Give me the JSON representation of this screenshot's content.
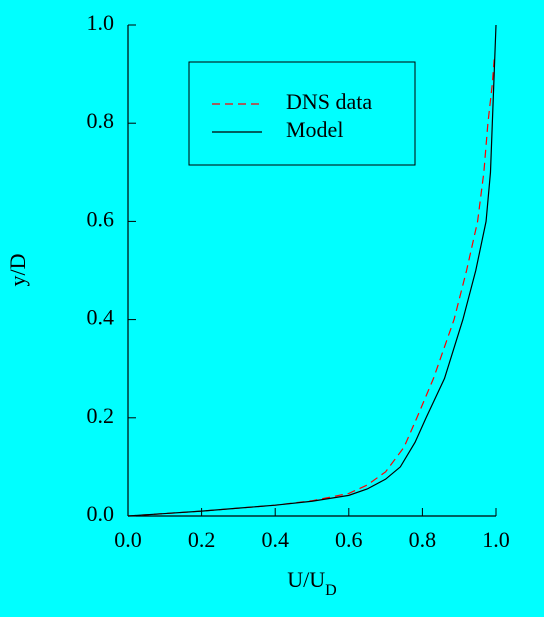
{
  "chart_data": {
    "type": "line",
    "xlabel": "U/U",
    "xlabel_sub": "D",
    "ylabel": "y/D",
    "xlim": [
      0,
      1
    ],
    "ylim": [
      0,
      1
    ],
    "xticks": [
      {
        "value": 0,
        "label": "0.0"
      },
      0.2,
      0.4,
      0.6,
      0.8,
      {
        "value": 1,
        "label": "1.0"
      }
    ],
    "yticks": [
      {
        "value": 0,
        "label": "0.0"
      },
      0.2,
      0.4,
      0.6,
      0.8,
      {
        "value": 1,
        "label": "1.0"
      }
    ],
    "legend": "upper center",
    "series": [
      {
        "name": "DNS data",
        "color": "#ff0000",
        "dash": true,
        "x": [
          0,
          0.1,
          0.2,
          0.3,
          0.4,
          0.5,
          0.6,
          0.65,
          0.7,
          0.75,
          0.785,
          0.83,
          0.886,
          0.92,
          0.95,
          0.967,
          0.978,
          0.99,
          0.995
        ],
        "values": [
          0,
          0.005,
          0.01,
          0.016,
          0.022,
          0.031,
          0.046,
          0.063,
          0.09,
          0.14,
          0.2,
          0.28,
          0.4,
          0.5,
          0.6,
          0.7,
          0.8,
          0.88,
          0.93
        ]
      },
      {
        "name": "Model",
        "color": "#000000",
        "dash": false,
        "x": [
          0,
          0.1,
          0.2,
          0.3,
          0.4,
          0.5,
          0.6,
          0.65,
          0.7,
          0.74,
          0.78,
          0.81,
          0.86,
          0.91,
          0.945,
          0.973,
          0.985,
          0.99,
          0.995,
          1.0
        ],
        "values": [
          0,
          0.005,
          0.01,
          0.016,
          0.022,
          0.03,
          0.042,
          0.055,
          0.075,
          0.1,
          0.15,
          0.2,
          0.28,
          0.4,
          0.5,
          0.6,
          0.7,
          0.8,
          0.9,
          1.0
        ]
      }
    ]
  }
}
